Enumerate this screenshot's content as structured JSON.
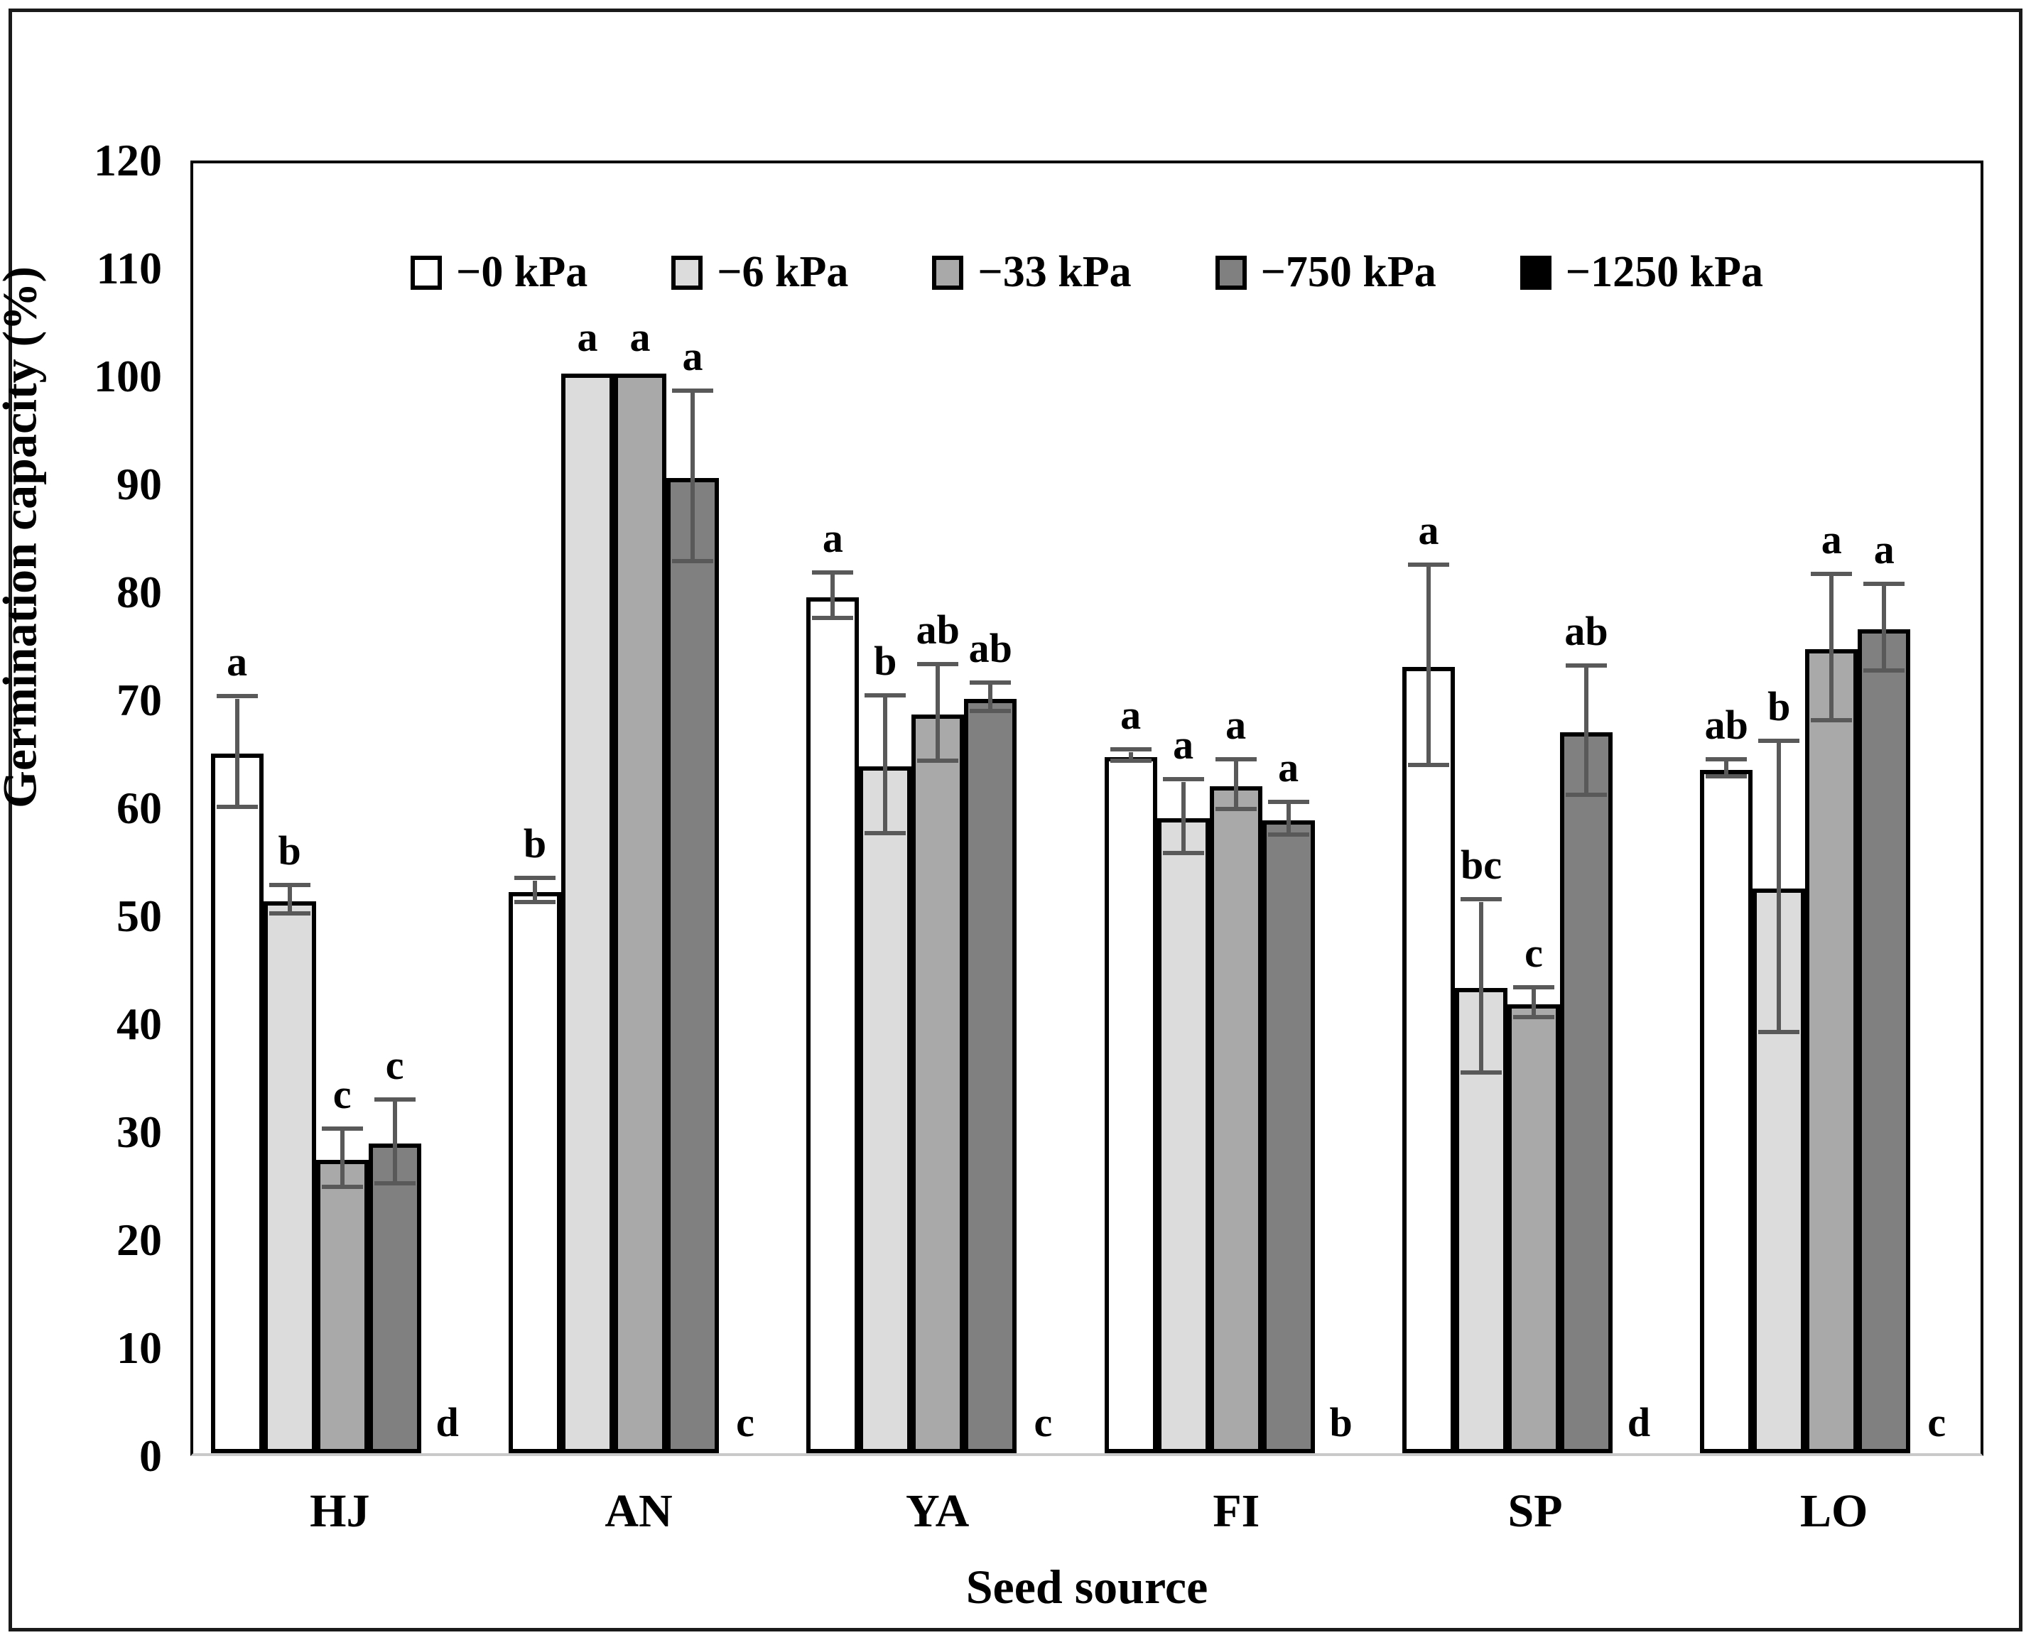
{
  "chart_data": {
    "type": "bar",
    "title": "",
    "xlabel": "Seed source",
    "ylabel": "Germination capacity (%)",
    "ylim": [
      0,
      120
    ],
    "ytick_step": 10,
    "grid": false,
    "legend_position": "top-center-inside",
    "categories": [
      "HJ",
      "AN",
      "YA",
      "FI",
      "SP",
      "LO"
    ],
    "series": [
      {
        "name": "−0 kPa",
        "color": "#ffffff",
        "values": [
          64.8,
          52.0,
          79.3,
          64.5,
          72.8,
          63.3
        ],
        "errors": [
          5.1,
          1.1,
          2.1,
          0.5,
          9.3,
          0.8
        ],
        "letters": [
          "a",
          "b",
          "a",
          "a",
          "a",
          "ab"
        ]
      },
      {
        "name": "−6 kPa",
        "color": "#dcdcdc",
        "values": [
          51.1,
          100.0,
          63.6,
          58.8,
          43.1,
          52.3
        ],
        "errors": [
          1.3,
          0,
          6.4,
          3.4,
          8.0,
          13.5
        ],
        "letters": [
          "b",
          "a",
          "b",
          "a",
          "bc",
          "b"
        ]
      },
      {
        "name": "−33 kPa",
        "color": "#a9a9a9",
        "values": [
          27.2,
          100.0,
          68.4,
          61.8,
          41.6,
          74.5
        ],
        "errors": [
          2.7,
          0,
          4.5,
          2.3,
          1.4,
          6.8
        ],
        "letters": [
          "c",
          "a",
          "ab",
          "a",
          "c",
          "a"
        ]
      },
      {
        "name": "−750 kPa",
        "color": "#808080",
        "values": [
          28.7,
          90.3,
          69.9,
          58.6,
          66.8,
          76.3
        ],
        "errors": [
          3.9,
          7.9,
          1.3,
          1.5,
          6.0,
          4.0
        ],
        "letters": [
          "c",
          "a",
          "ab",
          "a",
          "ab",
          "a"
        ]
      },
      {
        "name": "−1250 kPa",
        "color": "#000000",
        "values": [
          0,
          0,
          0,
          0,
          0,
          0
        ],
        "errors": [
          0,
          0,
          0,
          0,
          0,
          0
        ],
        "letters": [
          "d",
          "c",
          "c",
          "b",
          "d",
          "c"
        ]
      }
    ],
    "error_bar_color": "#595959",
    "bar_border_color": "#000000",
    "baseline_color": "#c9c9c9"
  }
}
